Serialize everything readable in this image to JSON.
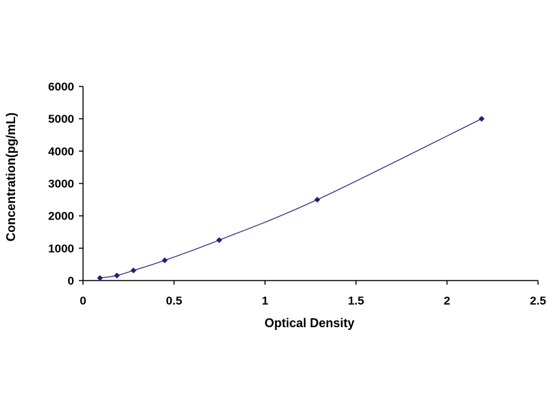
{
  "chart_data": {
    "type": "scatter",
    "title": "",
    "xlabel": "Optical Density",
    "ylabel": "Concentration(pg/mL)",
    "xlim": [
      0,
      2.5
    ],
    "ylim": [
      0,
      6000
    ],
    "xticks": [
      0,
      0.5,
      1,
      1.5,
      2,
      2.5
    ],
    "xtick_labels": [
      "0",
      "0.5",
      "1",
      "1.5",
      "2",
      "2.5"
    ],
    "yticks": [
      0,
      1000,
      2000,
      3000,
      4000,
      5000,
      6000
    ],
    "ytick_labels": [
      "0",
      "1000",
      "2000",
      "3000",
      "4000",
      "5000",
      "6000"
    ],
    "grid": false,
    "legend": "none",
    "series": [
      {
        "x": [
          0.093,
          0.186,
          0.277,
          0.449,
          0.748,
          1.287,
          2.19
        ],
        "y": [
          78,
          156,
          312,
          625,
          1250,
          2500,
          5000
        ],
        "color": "#1f1f7a",
        "marker": "diamond",
        "trendline": "smooth"
      }
    ]
  }
}
